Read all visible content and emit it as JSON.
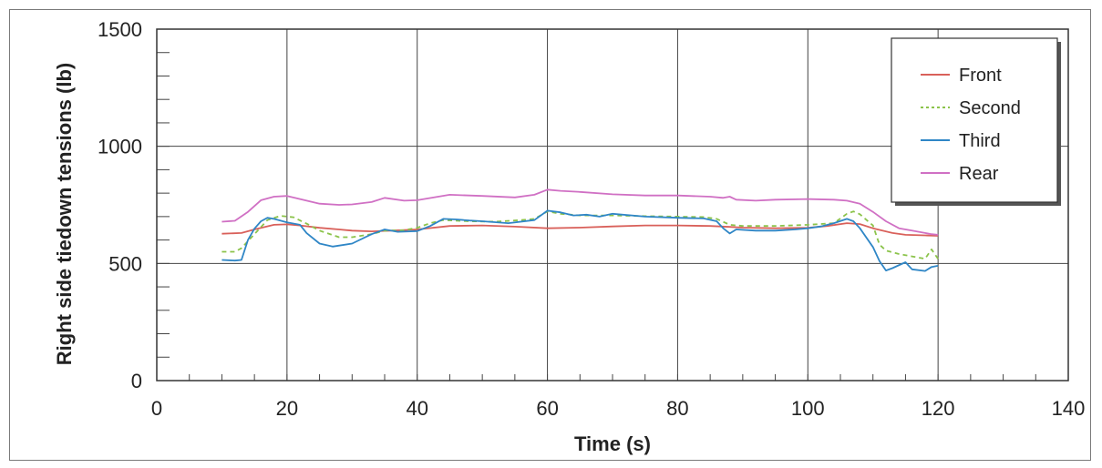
{
  "chart_data": {
    "type": "line",
    "title": "",
    "xlabel": "Time (s)",
    "ylabel": "Right side tiedown tensions (lb)",
    "xlim": [
      0,
      140
    ],
    "ylim": [
      0,
      1500
    ],
    "xticks": [
      "0",
      "20",
      "40",
      "60",
      "80",
      "100",
      "120",
      "140"
    ],
    "yticks": [
      "0",
      "500",
      "1000",
      "1500"
    ],
    "grid": true,
    "legend_position": "top-right",
    "series": [
      {
        "name": "Front",
        "color": "#d9605a",
        "dash": "",
        "points": [
          [
            10,
            627
          ],
          [
            13,
            630
          ],
          [
            15,
            645
          ],
          [
            18,
            665
          ],
          [
            20,
            667
          ],
          [
            22,
            662
          ],
          [
            25,
            652
          ],
          [
            28,
            645
          ],
          [
            30,
            640
          ],
          [
            33,
            637
          ],
          [
            36,
            640
          ],
          [
            40,
            645
          ],
          [
            45,
            660
          ],
          [
            50,
            662
          ],
          [
            55,
            657
          ],
          [
            60,
            650
          ],
          [
            65,
            653
          ],
          [
            70,
            658
          ],
          [
            75,
            662
          ],
          [
            80,
            662
          ],
          [
            85,
            660
          ],
          [
            88,
            656
          ],
          [
            90,
            653
          ],
          [
            95,
            650
          ],
          [
            100,
            652
          ],
          [
            103,
            660
          ],
          [
            106,
            672
          ],
          [
            108,
            668
          ],
          [
            110,
            650
          ],
          [
            113,
            630
          ],
          [
            115,
            622
          ],
          [
            118,
            620
          ],
          [
            120,
            618
          ]
        ]
      },
      {
        "name": "Second",
        "color": "#8bc34a",
        "dash": "5,4",
        "points": [
          [
            10,
            550
          ],
          [
            12,
            550
          ],
          [
            13,
            565
          ],
          [
            15,
            625
          ],
          [
            17,
            685
          ],
          [
            19,
            703
          ],
          [
            21,
            697
          ],
          [
            23,
            670
          ],
          [
            25,
            640
          ],
          [
            28,
            612
          ],
          [
            30,
            612
          ],
          [
            33,
            625
          ],
          [
            35,
            640
          ],
          [
            38,
            642
          ],
          [
            40,
            652
          ],
          [
            42,
            672
          ],
          [
            44,
            685
          ],
          [
            48,
            680
          ],
          [
            52,
            678
          ],
          [
            56,
            685
          ],
          [
            58,
            690
          ],
          [
            60,
            722
          ],
          [
            62,
            712
          ],
          [
            65,
            705
          ],
          [
            70,
            705
          ],
          [
            75,
            702
          ],
          [
            80,
            700
          ],
          [
            84,
            698
          ],
          [
            86,
            690
          ],
          [
            88,
            665
          ],
          [
            90,
            660
          ],
          [
            95,
            660
          ],
          [
            100,
            665
          ],
          [
            104,
            672
          ],
          [
            106,
            712
          ],
          [
            107,
            722
          ],
          [
            108,
            710
          ],
          [
            110,
            662
          ],
          [
            111,
            580
          ],
          [
            112,
            555
          ],
          [
            114,
            540
          ],
          [
            116,
            530
          ],
          [
            118,
            520
          ],
          [
            119,
            560
          ],
          [
            120,
            520
          ]
        ]
      },
      {
        "name": "Third",
        "color": "#2f86c6",
        "dash": "",
        "points": [
          [
            10,
            515
          ],
          [
            12,
            512
          ],
          [
            13,
            515
          ],
          [
            14,
            600
          ],
          [
            15,
            648
          ],
          [
            16,
            680
          ],
          [
            17,
            695
          ],
          [
            18,
            690
          ],
          [
            20,
            675
          ],
          [
            22,
            665
          ],
          [
            23,
            630
          ],
          [
            25,
            585
          ],
          [
            27,
            572
          ],
          [
            30,
            585
          ],
          [
            33,
            625
          ],
          [
            35,
            645
          ],
          [
            37,
            635
          ],
          [
            40,
            638
          ],
          [
            42,
            660
          ],
          [
            44,
            690
          ],
          [
            46,
            688
          ],
          [
            48,
            683
          ],
          [
            50,
            680
          ],
          [
            54,
            672
          ],
          [
            58,
            685
          ],
          [
            60,
            725
          ],
          [
            62,
            718
          ],
          [
            64,
            705
          ],
          [
            66,
            708
          ],
          [
            68,
            700
          ],
          [
            70,
            712
          ],
          [
            75,
            700
          ],
          [
            80,
            695
          ],
          [
            84,
            692
          ],
          [
            86,
            680
          ],
          [
            87,
            650
          ],
          [
            88,
            628
          ],
          [
            89,
            645
          ],
          [
            92,
            640
          ],
          [
            95,
            640
          ],
          [
            98,
            645
          ],
          [
            100,
            650
          ],
          [
            102,
            658
          ],
          [
            104,
            672
          ],
          [
            106,
            690
          ],
          [
            107,
            680
          ],
          [
            108,
            650
          ],
          [
            110,
            570
          ],
          [
            111,
            510
          ],
          [
            112,
            470
          ],
          [
            113,
            480
          ],
          [
            115,
            505
          ],
          [
            116,
            475
          ],
          [
            118,
            468
          ],
          [
            119,
            485
          ],
          [
            120,
            490
          ]
        ]
      },
      {
        "name": "Rear",
        "color": "#d070c4",
        "dash": "",
        "points": [
          [
            10,
            678
          ],
          [
            12,
            682
          ],
          [
            14,
            720
          ],
          [
            16,
            770
          ],
          [
            18,
            785
          ],
          [
            20,
            788
          ],
          [
            22,
            775
          ],
          [
            25,
            755
          ],
          [
            28,
            750
          ],
          [
            30,
            752
          ],
          [
            33,
            762
          ],
          [
            35,
            780
          ],
          [
            38,
            768
          ],
          [
            40,
            770
          ],
          [
            45,
            793
          ],
          [
            50,
            788
          ],
          [
            55,
            782
          ],
          [
            58,
            793
          ],
          [
            60,
            815
          ],
          [
            62,
            810
          ],
          [
            65,
            805
          ],
          [
            70,
            795
          ],
          [
            75,
            790
          ],
          [
            80,
            790
          ],
          [
            85,
            785
          ],
          [
            87,
            780
          ],
          [
            88,
            785
          ],
          [
            89,
            772
          ],
          [
            92,
            768
          ],
          [
            95,
            772
          ],
          [
            100,
            775
          ],
          [
            104,
            772
          ],
          [
            106,
            768
          ],
          [
            108,
            755
          ],
          [
            110,
            720
          ],
          [
            112,
            680
          ],
          [
            114,
            650
          ],
          [
            116,
            640
          ],
          [
            118,
            630
          ],
          [
            119,
            625
          ],
          [
            120,
            622
          ]
        ]
      }
    ]
  }
}
